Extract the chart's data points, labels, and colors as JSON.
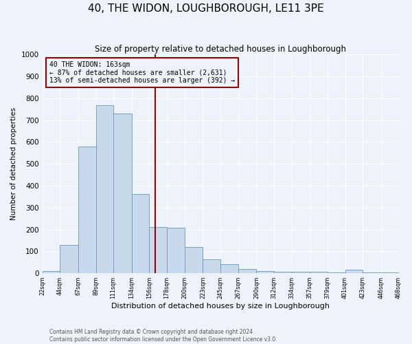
{
  "title": "40, THE WIDON, LOUGHBOROUGH, LE11 3PE",
  "subtitle": "Size of property relative to detached houses in Loughborough",
  "xlabel": "Distribution of detached houses by size in Loughborough",
  "ylabel": "Number of detached properties",
  "bar_edges": [
    22,
    44,
    67,
    89,
    111,
    134,
    156,
    178,
    200,
    223,
    245,
    267,
    290,
    312,
    334,
    357,
    379,
    401,
    423,
    446,
    468
  ],
  "bar_heights": [
    10,
    128,
    578,
    768,
    730,
    362,
    210,
    207,
    120,
    62,
    40,
    18,
    10,
    5,
    5,
    5,
    2,
    15,
    2,
    2
  ],
  "bar_color": "#c9d9ec",
  "bar_edge_color": "#6699bb",
  "vline_x": 163,
  "vline_color": "#990000",
  "annotation_title": "40 THE WIDON: 163sqm",
  "annotation_line1": "← 87% of detached houses are smaller (2,631)",
  "annotation_line2": "13% of semi-detached houses are larger (392) →",
  "annotation_box_color": "#990000",
  "tick_labels": [
    "22sqm",
    "44sqm",
    "67sqm",
    "89sqm",
    "111sqm",
    "134sqm",
    "156sqm",
    "178sqm",
    "200sqm",
    "223sqm",
    "245sqm",
    "267sqm",
    "290sqm",
    "312sqm",
    "334sqm",
    "357sqm",
    "379sqm",
    "401sqm",
    "423sqm",
    "446sqm",
    "468sqm"
  ],
  "ylim": [
    0,
    1000
  ],
  "yticks": [
    0,
    100,
    200,
    300,
    400,
    500,
    600,
    700,
    800,
    900,
    1000
  ],
  "footer_line1": "Contains HM Land Registry data © Crown copyright and database right 2024.",
  "footer_line2": "Contains public sector information licensed under the Open Government Licence v3.0.",
  "background_color": "#eef2f9",
  "grid_color": "#ffffff",
  "title_fontsize": 11,
  "subtitle_fontsize": 8.5,
  "xlabel_fontsize": 8,
  "ylabel_fontsize": 7.5
}
